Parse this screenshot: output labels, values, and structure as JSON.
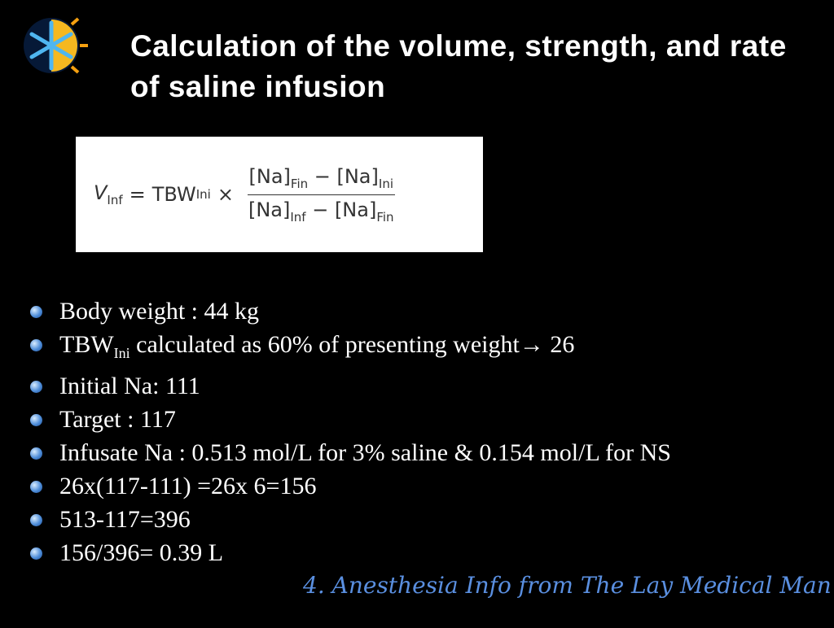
{
  "title": "Calculation of the volume, strength, and rate of saline infusion",
  "formula": {
    "lhs": "V",
    "lhs_sub": "Inf",
    "equals": "=",
    "tbw": "TBW",
    "tbw_sub": "Ini",
    "times": "×",
    "numerator": [
      {
        "text": "[Na]"
      },
      {
        "sub": "Fin"
      },
      {
        "text": " − [Na]"
      },
      {
        "sub": "Ini"
      }
    ],
    "denominator": [
      {
        "text": "[Na]"
      },
      {
        "sub": "Inf"
      },
      {
        "text": " − [Na]"
      },
      {
        "sub": "Fin"
      }
    ]
  },
  "bullets": [
    [
      {
        "text": "Body weight : 44 kg"
      }
    ],
    [
      {
        "text": "TBW"
      },
      {
        "sub": "Ini"
      },
      {
        "text": " calculated as 60% of presenting weight→ 26"
      }
    ],
    [
      {
        "text": "Initial Na: 111"
      }
    ],
    [
      {
        "text": "Target : 117"
      }
    ],
    [
      {
        "text": "Infusate Na : 0.513 mol/L for 3% saline  & 0.154 mol/L for NS"
      }
    ],
    [
      {
        "text": "26x(117-111) =26x 6=156"
      }
    ],
    [
      {
        "text": "513-117=396"
      }
    ],
    [
      {
        "text": "156/396= 0.39 L"
      }
    ]
  ],
  "watermark": "4. Anesthesia Info from The Lay Medical Man"
}
